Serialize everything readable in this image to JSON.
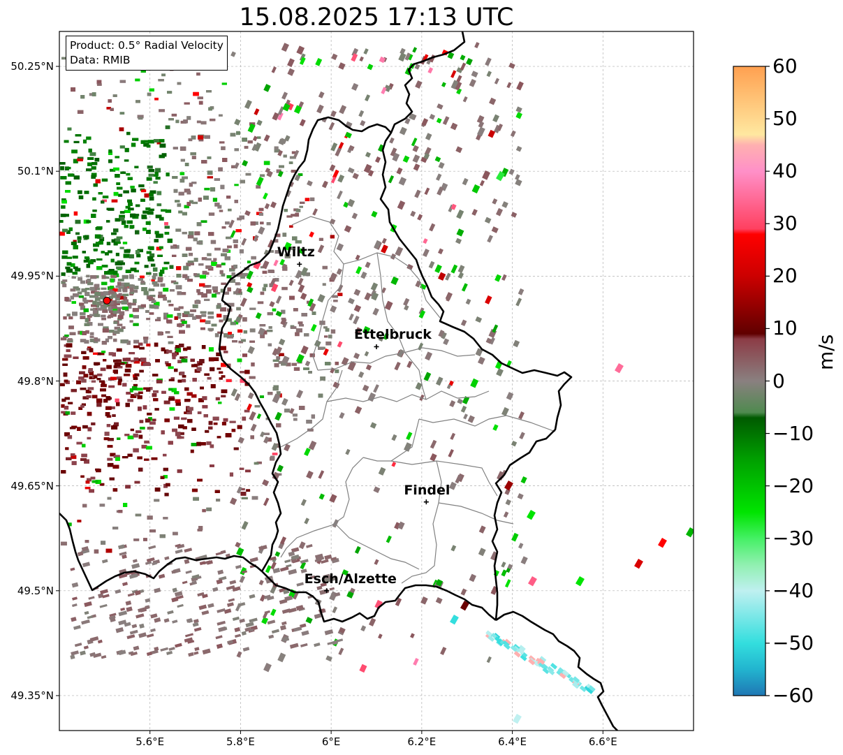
{
  "title": "15.08.2025 17:13 UTC",
  "info": {
    "product_line": "Product: 0.5° Radial Velocity",
    "data_line": "Data: RMIB"
  },
  "map": {
    "lon_range": [
      5.4,
      6.8
    ],
    "lat_range": [
      49.3,
      50.3
    ],
    "lat_ticks": [
      {
        "value": 50.25,
        "label": "50.25°N"
      },
      {
        "value": 50.1,
        "label": "50.1°N"
      },
      {
        "value": 49.95,
        "label": "49.95°N"
      },
      {
        "value": 49.8,
        "label": "49.8°N"
      },
      {
        "value": 49.65,
        "label": "49.65°N"
      },
      {
        "value": 49.5,
        "label": "49.5°N"
      },
      {
        "value": 49.35,
        "label": "49.35°N"
      }
    ],
    "lon_ticks": [
      {
        "value": 5.6,
        "label": "5.6°E"
      },
      {
        "value": 5.8,
        "label": "5.8°E"
      },
      {
        "value": 6.0,
        "label": "6°E"
      },
      {
        "value": 6.2,
        "label": "6.2°E"
      },
      {
        "value": 6.4,
        "label": "6.4°E"
      },
      {
        "value": 6.6,
        "label": "6.6°E"
      }
    ],
    "radar_site": {
      "lon": 5.505,
      "lat": 49.915,
      "color": "#ff0000"
    },
    "cities": [
      {
        "name": "Wiltz",
        "lon": 5.93,
        "lat": 49.967
      },
      {
        "name": "Ettelbruck",
        "lon": 6.1,
        "lat": 49.849
      },
      {
        "name": "Findel",
        "lon": 6.21,
        "lat": 49.627
      },
      {
        "name": "Esch/Alzette",
        "lon": 5.99,
        "lat": 49.5
      }
    ],
    "grid": true
  },
  "colorbar": {
    "label": "m/s",
    "min": -60,
    "max": 60,
    "ticks": [
      {
        "value": 60,
        "label": "60"
      },
      {
        "value": 50,
        "label": "50"
      },
      {
        "value": 40,
        "label": "40"
      },
      {
        "value": 30,
        "label": "30"
      },
      {
        "value": 20,
        "label": "20"
      },
      {
        "value": 10,
        "label": "10"
      },
      {
        "value": 0,
        "label": "0"
      },
      {
        "value": -10,
        "label": "−10"
      },
      {
        "value": -20,
        "label": "−20"
      },
      {
        "value": -30,
        "label": "−30"
      },
      {
        "value": -40,
        "label": "−40"
      },
      {
        "value": -50,
        "label": "−50"
      },
      {
        "value": -60,
        "label": "−60"
      }
    ],
    "stops": [
      {
        "value": -60,
        "color": "#1f77b4"
      },
      {
        "value": -55,
        "color": "#22b4cf"
      },
      {
        "value": -50,
        "color": "#33dede"
      },
      {
        "value": -40,
        "color": "#bff0f0"
      },
      {
        "value": -35,
        "color": "#90f0b0"
      },
      {
        "value": -30,
        "color": "#44f064"
      },
      {
        "value": -25,
        "color": "#00e400"
      },
      {
        "value": -15,
        "color": "#00a000"
      },
      {
        "value": -7,
        "color": "#005a00"
      },
      {
        "value": -6,
        "color": "#4f8a4f"
      },
      {
        "value": 0,
        "color": "#8a8080"
      },
      {
        "value": 8,
        "color": "#8c3c46"
      },
      {
        "value": 9,
        "color": "#600000"
      },
      {
        "value": 20,
        "color": "#cc0000"
      },
      {
        "value": 28,
        "color": "#ff0000"
      },
      {
        "value": 29,
        "color": "#ff4060"
      },
      {
        "value": 40,
        "color": "#ff90c8"
      },
      {
        "value": 45,
        "color": "#ffb0b0"
      },
      {
        "value": 47,
        "color": "#ffe8a0"
      },
      {
        "value": 60,
        "color": "#ffa050"
      }
    ]
  }
}
